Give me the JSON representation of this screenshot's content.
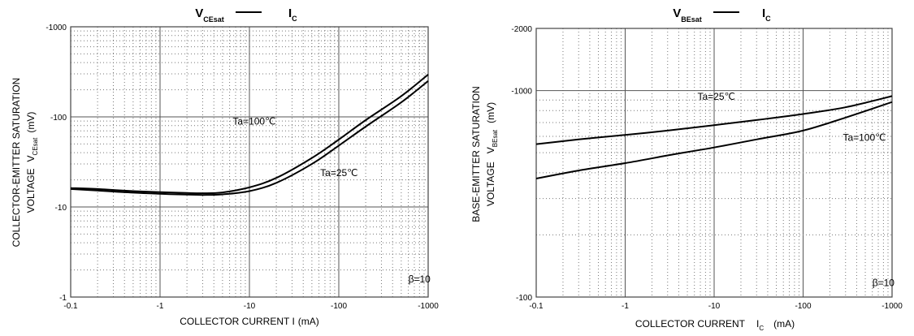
{
  "chart_data": [
    {
      "type": "line",
      "title": {
        "main": "V",
        "sub": "CEsat",
        "rhs_main": "I",
        "rhs_sub": "C"
      },
      "xlabel": {
        "text": "COLLECTOR CURRENT I",
        "unit": "(mA)"
      },
      "ylabel": {
        "line1": "COLLECTOR-EMITTER SATURATION",
        "line2_text": "VOLTAGE",
        "line2_sym": "V",
        "line2_sub": "CEsat",
        "line2_unit": "(mV)"
      },
      "x_ticks": [
        "-0.1",
        "-1",
        "-10",
        "-100",
        "-1000"
      ],
      "y_ticks": [
        "-1",
        "-10",
        "-100",
        "-1000"
      ],
      "xlim": [
        0.1,
        1000
      ],
      "ylim": [
        1,
        1000
      ],
      "xscale": "log",
      "yscale": "log",
      "grid": true,
      "annotations": [
        {
          "text": "Ta=100℃",
          "x": 6.5,
          "y": 82
        },
        {
          "text": "Ta=25℃",
          "x": 62,
          "y": 22
        },
        {
          "text": "β=10",
          "x": 600,
          "y": 1.45
        }
      ],
      "series": [
        {
          "values": [
            [
              0.1,
              15.8
            ],
            [
              0.2,
              15.2
            ],
            [
              0.5,
              14.4
            ],
            [
              1,
              14.0
            ],
            [
              2,
              13.7
            ],
            [
              3,
              13.6
            ],
            [
              5,
              13.8
            ],
            [
              10,
              15.0
            ],
            [
              20,
              18.5
            ],
            [
              50,
              30
            ],
            [
              100,
              48
            ],
            [
              200,
              78
            ],
            [
              500,
              145
            ],
            [
              1000,
              250
            ]
          ]
        },
        {
          "values": [
            [
              0.1,
              16.2
            ],
            [
              0.2,
              15.8
            ],
            [
              0.5,
              15.0
            ],
            [
              1,
              14.6
            ],
            [
              2,
              14.3
            ],
            [
              3,
              14.2
            ],
            [
              5,
              14.5
            ],
            [
              10,
              16.5
            ],
            [
              20,
              21.0
            ],
            [
              50,
              35
            ],
            [
              100,
              56
            ],
            [
              200,
              92
            ],
            [
              500,
              170
            ],
            [
              1000,
              295
            ]
          ]
        }
      ]
    },
    {
      "type": "line",
      "title": {
        "main": "V",
        "sub": "BEsat",
        "rhs_main": "I",
        "rhs_sub": "C"
      },
      "xlabel": {
        "text": "COLLECTOR CURRENT",
        "sym": "I",
        "sym_sub": "C",
        "unit": "(mA)"
      },
      "ylabel": {
        "line1": "BASE-EMITTER SATURATION",
        "line2_text": "VOLTAGE",
        "line2_sym": "V",
        "line2_sub": "BEsat",
        "line2_unit": "(mV)"
      },
      "x_ticks": [
        "-0.1",
        "-1",
        "-10",
        "-100",
        "-1000"
      ],
      "y_ticks": [
        "-100",
        "-1000",
        "-2000"
      ],
      "xlim": [
        0.1,
        1000
      ],
      "ylim": [
        100,
        2000
      ],
      "xscale": "log",
      "yscale": "log",
      "grid": true,
      "annotations": [
        {
          "text": "Ta=25℃",
          "x": 6.5,
          "y": 900
        },
        {
          "text": "Ta=100℃",
          "x": 280,
          "y": 570
        },
        {
          "text": "β=10",
          "x": 600,
          "y": 113
        }
      ],
      "series": [
        {
          "values": [
            [
              0.1,
              550
            ],
            [
              0.3,
              580
            ],
            [
              1,
              610
            ],
            [
              3,
              640
            ],
            [
              10,
              680
            ],
            [
              30,
              720
            ],
            [
              100,
              770
            ],
            [
              300,
              830
            ],
            [
              1000,
              940
            ]
          ]
        },
        {
          "values": [
            [
              0.1,
              375
            ],
            [
              0.3,
              410
            ],
            [
              1,
              445
            ],
            [
              3,
              485
            ],
            [
              10,
              530
            ],
            [
              30,
              580
            ],
            [
              100,
              640
            ],
            [
              300,
              740
            ],
            [
              1000,
              880
            ]
          ]
        }
      ]
    }
  ]
}
